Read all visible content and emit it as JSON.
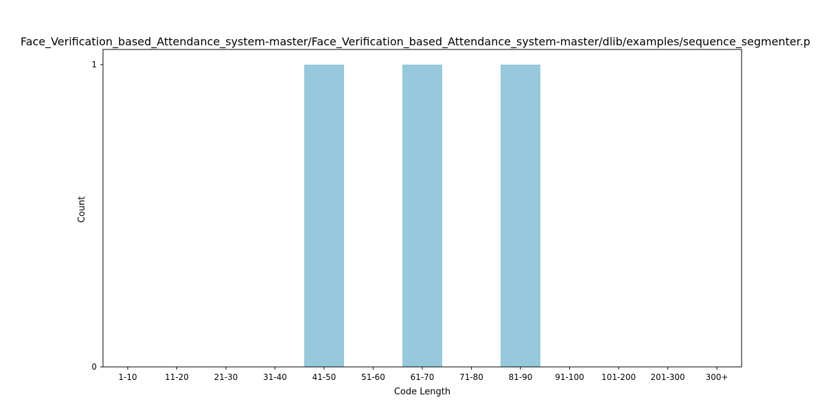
{
  "chart_data": {
    "type": "bar",
    "title": "Face_Verification_based_Attendance_system-master/Face_Verification_based_Attendance_system-master/dlib/examples/sequence_segmenter.p",
    "xlabel": "Code Length",
    "ylabel": "Count",
    "categories": [
      "1-10",
      "11-20",
      "21-30",
      "31-40",
      "41-50",
      "51-60",
      "61-70",
      "71-80",
      "81-90",
      "91-100",
      "101-200",
      "201-300",
      "300+"
    ],
    "values": [
      0,
      0,
      0,
      0,
      1,
      0,
      1,
      0,
      1,
      0,
      0,
      0,
      0
    ],
    "ylim": [
      0,
      1.05
    ],
    "yticks": [
      0,
      1
    ],
    "grid": false,
    "bar_color": "#96c9dc"
  }
}
